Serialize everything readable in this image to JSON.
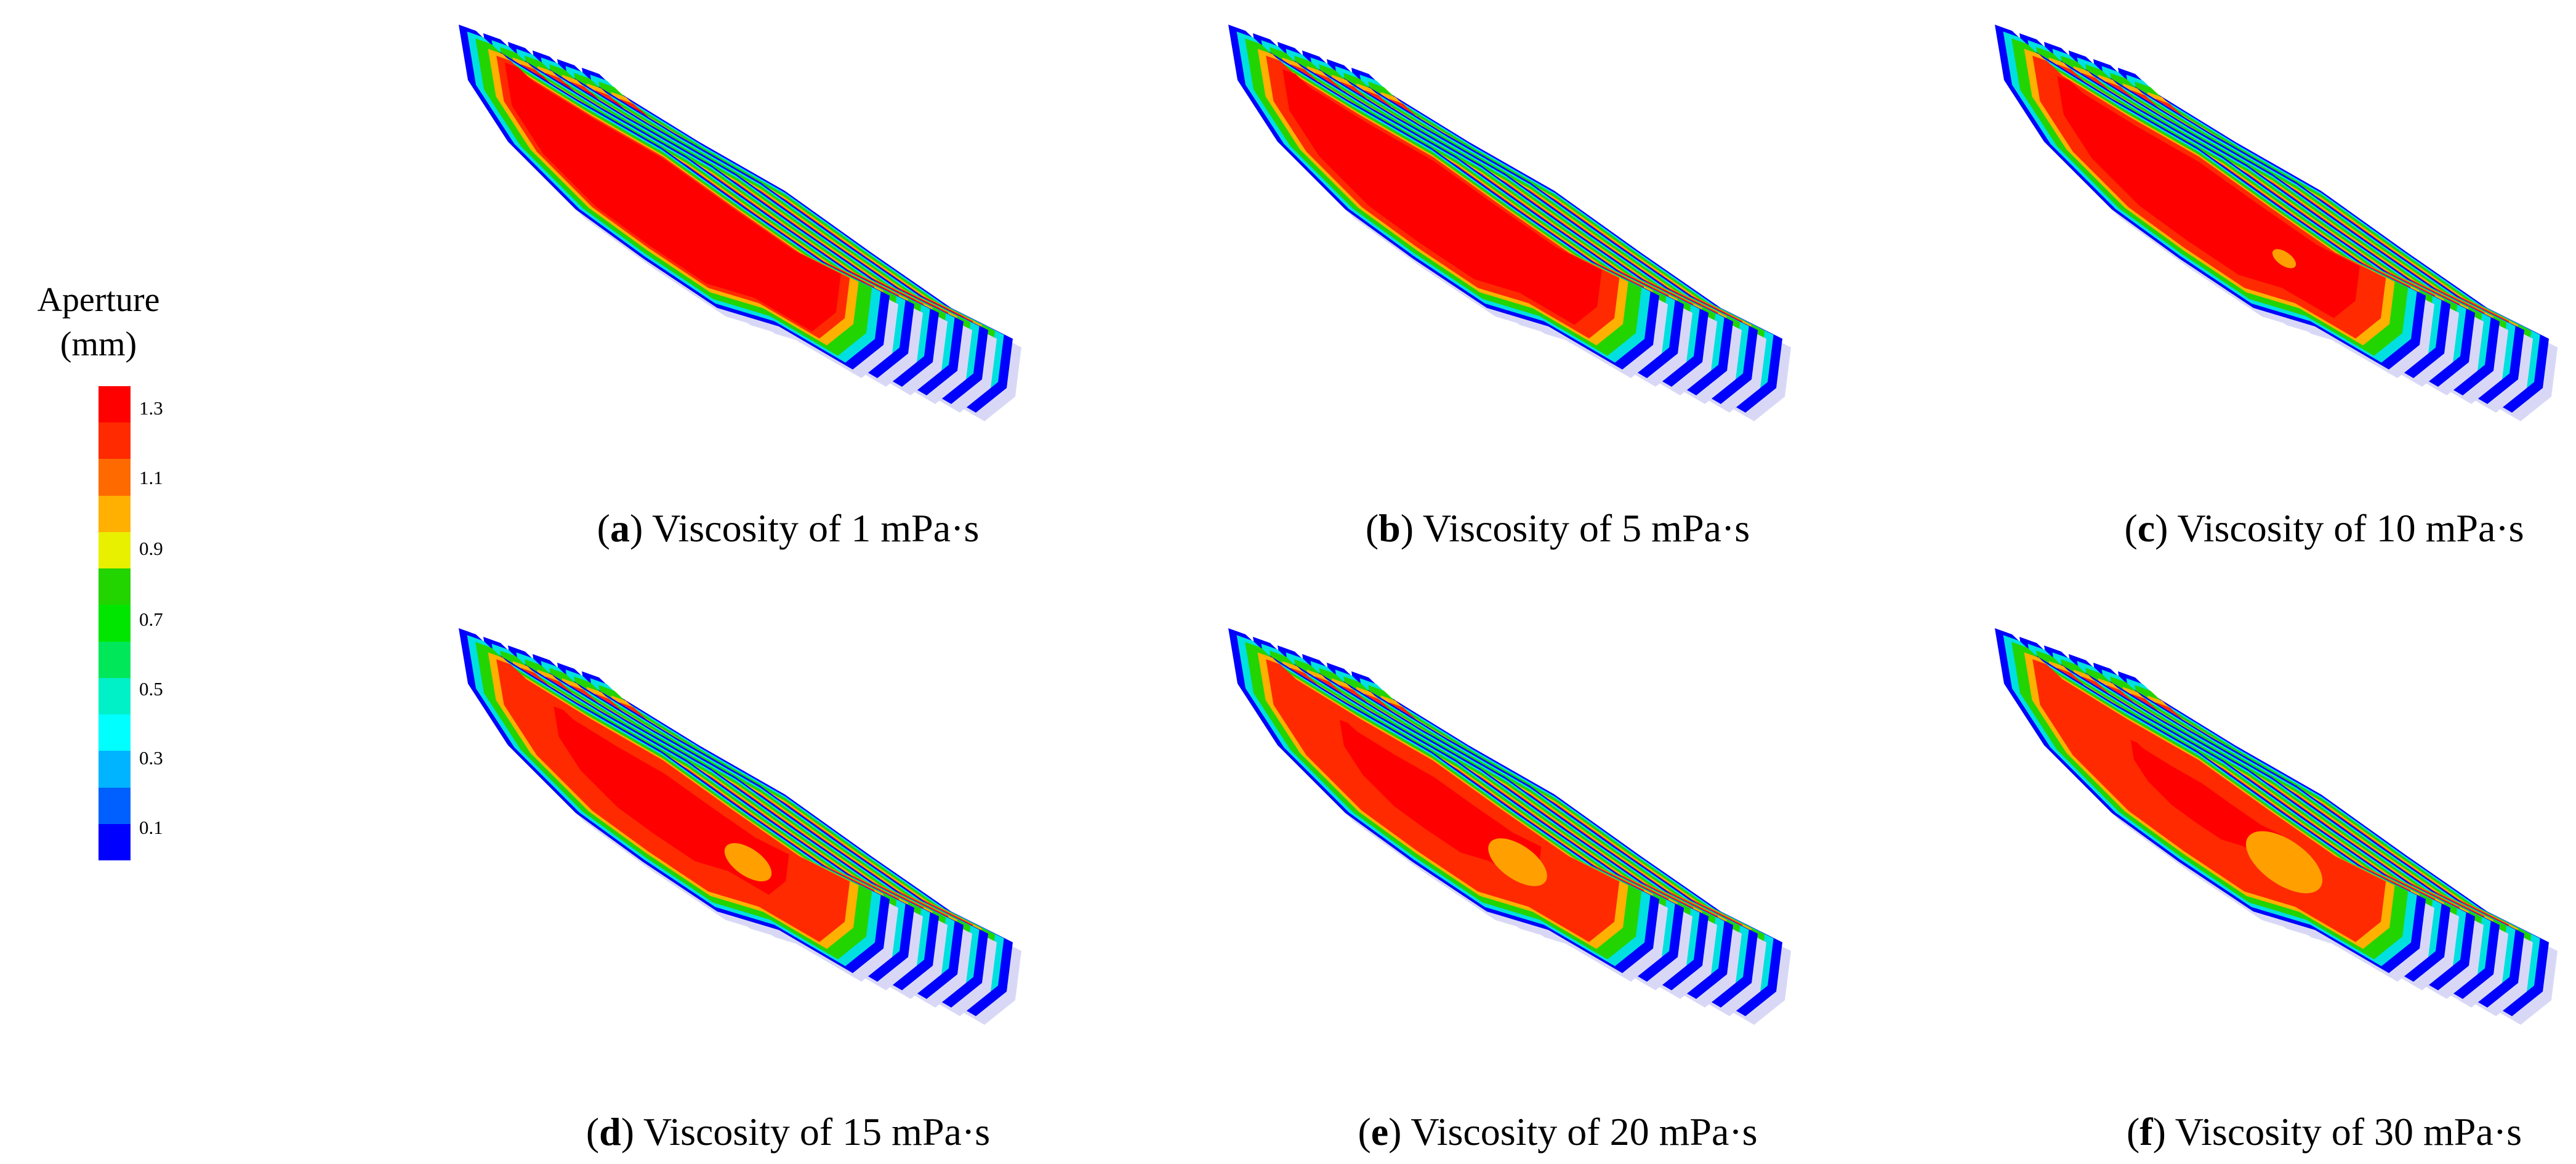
{
  "legend": {
    "title_line1": "Aperture",
    "title_line2": "(mm)",
    "ticks": [
      "1.3",
      "1.1",
      "0.9",
      "0.7",
      "0.5",
      "0.3",
      "0.1"
    ],
    "colors": [
      "#ff0000",
      "#ff2a00",
      "#ff6a00",
      "#ffb000",
      "#e8f000",
      "#22d400",
      "#00e600",
      "#00e85a",
      "#00f0c8",
      "#00ffff",
      "#00b4ff",
      "#0060ff",
      "#0000ff"
    ]
  },
  "panels": [
    {
      "letter": "a",
      "caption": " Viscosity of 1 mPa·s",
      "red_level": 1.0
    },
    {
      "letter": "b",
      "caption": " Viscosity of 5 mPa·s",
      "red_level": 0.95
    },
    {
      "letter": "c",
      "caption": " Viscosity of 10 mPa·s",
      "red_level": 0.9
    },
    {
      "letter": "d",
      "caption": " Viscosity of 15 mPa·s",
      "red_level": 0.7
    },
    {
      "letter": "e",
      "caption": " Viscosity of 20 mPa·s",
      "red_level": 0.6
    },
    {
      "letter": "f",
      "caption": " Viscosity of 30 mPa·s",
      "red_level": 0.45
    }
  ]
}
